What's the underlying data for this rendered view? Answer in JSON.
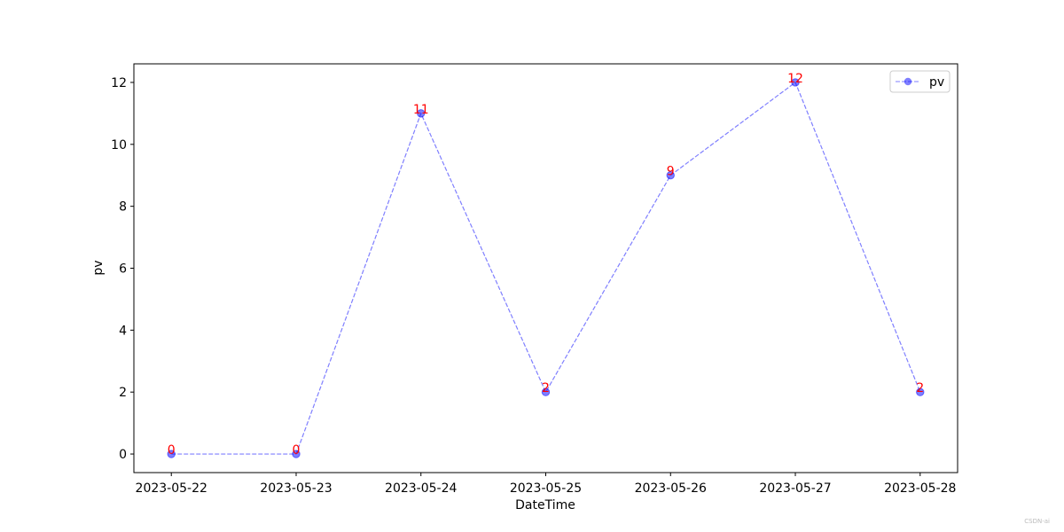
{
  "chart_data": {
    "type": "line",
    "x_label": "DateTime",
    "y_label": "pv",
    "categories": [
      "2023-05-22",
      "2023-05-23",
      "2023-05-24",
      "2023-05-25",
      "2023-05-26",
      "2023-05-27",
      "2023-05-28"
    ],
    "series": [
      {
        "name": "pv",
        "color": "#0000ff",
        "values": [
          0,
          0,
          11,
          2,
          9,
          12,
          2
        ]
      }
    ],
    "value_label_color": "#ff0000",
    "ylim": [
      -0.6,
      12.6
    ],
    "yticks": [
      0,
      2,
      4,
      6,
      8,
      10,
      12
    ],
    "legend": "upper right",
    "grid": false,
    "watermark": "CSDN-ai"
  }
}
